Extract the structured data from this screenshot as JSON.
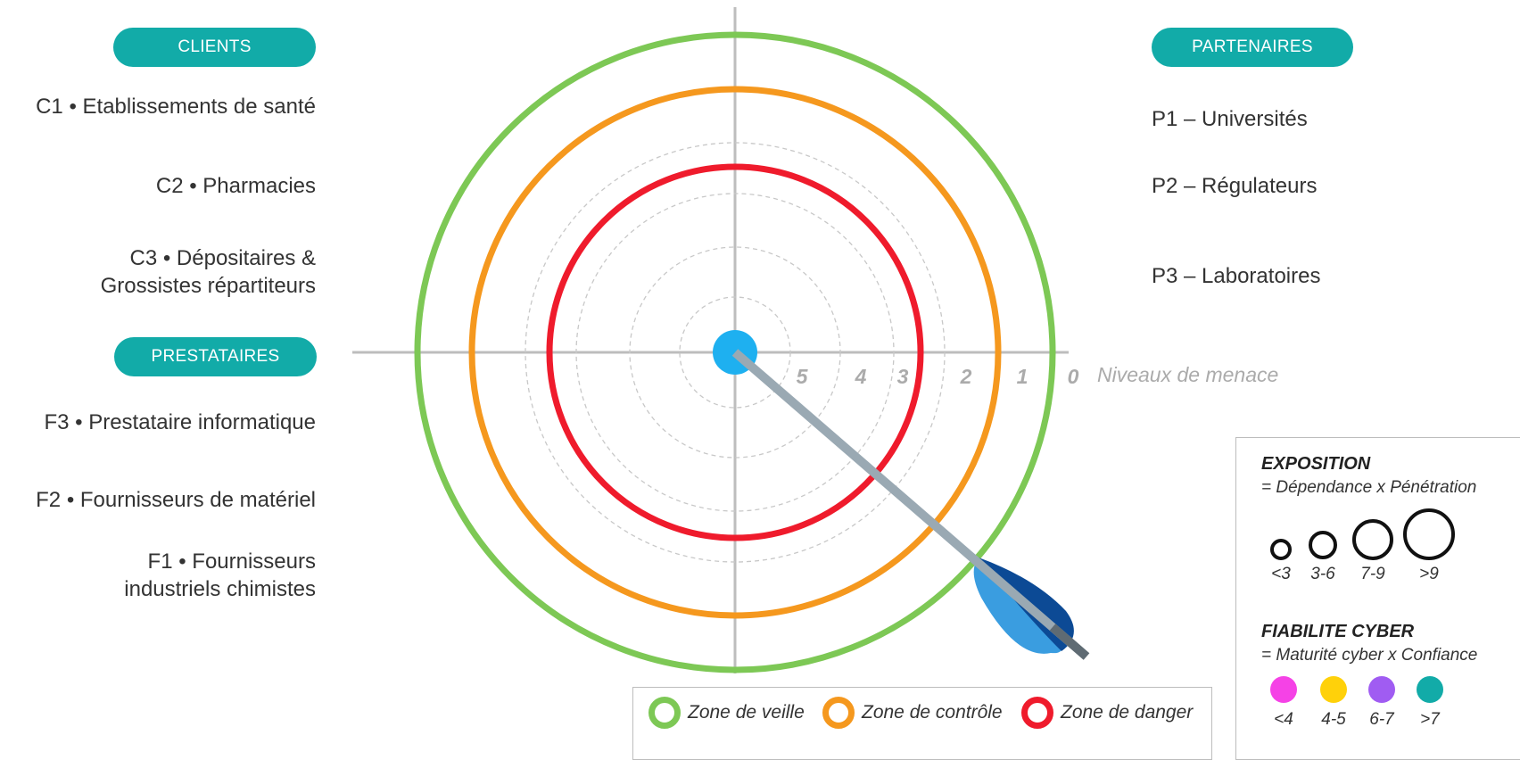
{
  "colors": {
    "pill": "#12ABA8",
    "zone_veille": "#7DC855",
    "zone_controle": "#F5981E",
    "zone_danger": "#EF1B2C",
    "center": "#1EB0F0",
    "axis": "#BDBDBD",
    "arrow_shaft": "#9AA9B3",
    "arrow_tip": "#5F6B73",
    "arrow_fletch_dark": "#0C4A95",
    "arrow_fletch_light": "#3A9DE0",
    "dot_lt4": "#F542E6",
    "dot_4_5": "#FFD10A",
    "dot_6_7": "#A05CF2",
    "dot_gt7": "#12ABA8"
  },
  "groups": {
    "clients": {
      "title": "CLIENTS",
      "items": [
        "C1 • Etablissements de santé",
        "C2 • Pharmacies",
        "C3 • Dépositaires &",
        "Grossistes répartiteurs"
      ]
    },
    "prestataires": {
      "title": "PRESTATAIRES",
      "items": [
        "F3 • Prestataire  informatique",
        "F2 • Fournisseurs de matériel",
        "F1 • Fournisseurs",
        "industriels chimistes"
      ]
    },
    "partenaires": {
      "title": "PARTENAIRES",
      "items": [
        "P1 – Universités",
        "P2 – Régulateurs",
        "P3 – Laboratoires"
      ]
    }
  },
  "radar": {
    "levels": [
      "5",
      "4",
      "3",
      "2",
      "1",
      "0"
    ],
    "axis_label": "Niveaux de menace"
  },
  "legend": {
    "exposition_title": "EXPOSITION",
    "exposition_formula": "= Dépendance x Pénétration",
    "exposition_ticks": [
      "<3",
      "3-6",
      "7-9",
      ">9"
    ],
    "fiabilite_title": "FIABILITE CYBER",
    "fiabilite_formula": "= Maturité cyber x Confiance",
    "fiabilite_ticks": [
      "<4",
      "4-5",
      "6-7",
      ">7"
    ]
  },
  "zones": {
    "veille": "Zone de veille",
    "controle": "Zone de contrôle",
    "danger": "Zone de danger"
  }
}
